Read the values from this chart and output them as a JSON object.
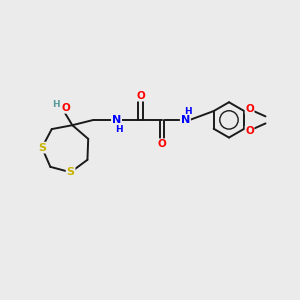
{
  "background_color": "#ebebeb",
  "bond_color": "#1a1a1a",
  "bond_width": 1.4,
  "figsize": [
    3.0,
    3.0
  ],
  "dpi": 100,
  "atom_colors": {
    "S": "#c8b400",
    "O": "#ff0000",
    "N": "#0000ff",
    "H": "#5a9a9a",
    "C": "#1a1a1a"
  },
  "font_size": 7.5,
  "font_size_small": 6.5,
  "xlim": [
    0,
    10
  ],
  "ylim": [
    0,
    10
  ]
}
